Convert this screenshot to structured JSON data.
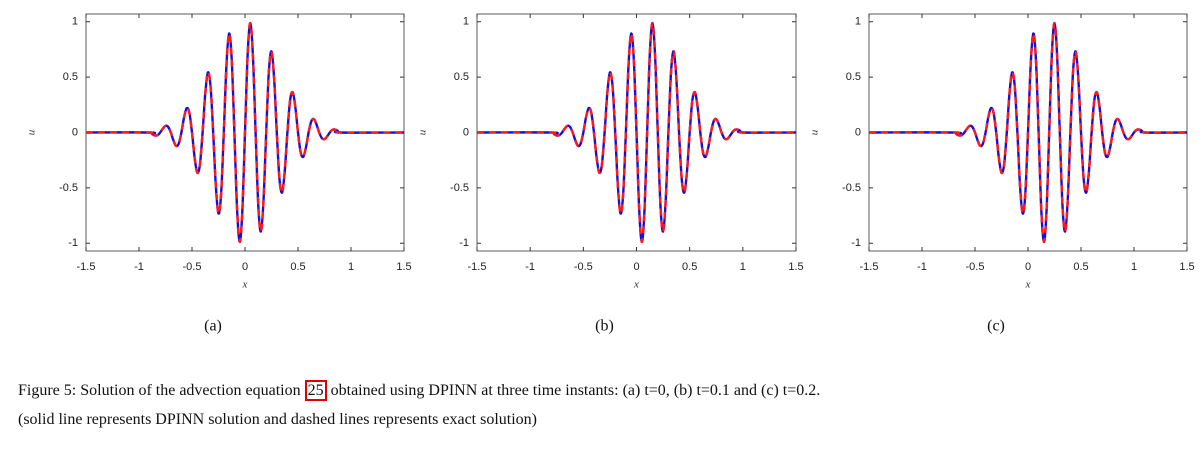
{
  "chart_data": [
    {
      "type": "line",
      "label": "(a)",
      "xlabel": "x",
      "ylabel": "u",
      "xlim": [
        -1.5,
        1.5
      ],
      "ylim": [
        -1.07,
        1.07
      ],
      "xticks": [
        -1.5,
        -1,
        -0.5,
        0,
        0.5,
        1,
        1.5
      ],
      "yticks": [
        -1,
        -0.5,
        0,
        0.5,
        1
      ],
      "grid": false,
      "x": [
        -1.5,
        -0.9,
        -0.875,
        -0.85,
        -0.825,
        -0.8,
        -0.775,
        -0.75,
        -0.725,
        -0.7,
        -0.675,
        -0.65,
        -0.625,
        -0.6,
        -0.575,
        -0.55,
        -0.525,
        -0.5,
        -0.475,
        -0.45,
        -0.425,
        -0.4,
        -0.375,
        -0.35,
        -0.325,
        -0.3,
        -0.275,
        -0.25,
        -0.225,
        -0.2,
        -0.175,
        -0.15,
        -0.125,
        -0.1,
        -0.075,
        -0.05,
        -0.025,
        0,
        0.025,
        0.05,
        0.075,
        0.1,
        0.125,
        0.15,
        0.175,
        0.2,
        0.225,
        0.25,
        0.275,
        0.3,
        0.325,
        0.35,
        0.375,
        0.4,
        0.425,
        0.45,
        0.475,
        0.5,
        0.525,
        0.55,
        0.575,
        0.6,
        0.625,
        0.65,
        0.675,
        0.7,
        0.725,
        0.75,
        0.775,
        0.8,
        0.825,
        0.85,
        0.875,
        0.9,
        1.5
      ],
      "series": [
        {
          "color": "#1010e0",
          "dashed": false,
          "values": [
            0,
            0,
            -0.015,
            -0.027,
            -0.024,
            0,
            0.035,
            0.06,
            0.051,
            0,
            -0.072,
            -0.121,
            -0.1,
            0,
            0.135,
            0.22,
            0.178,
            0,
            -0.229,
            -0.363,
            -0.287,
            0,
            0.35,
            0.542,
            0.417,
            0,
            -0.485,
            -0.732,
            -0.549,
            0,
            0.607,
            0.894,
            0.654,
            0,
            -0.687,
            -0.988,
            -0.705,
            0,
            0.705,
            0.988,
            0.687,
            0,
            -0.654,
            -0.894,
            -0.607,
            0,
            0.549,
            0.732,
            0.485,
            0,
            -0.417,
            -0.542,
            -0.35,
            0,
            0.287,
            0.363,
            0.229,
            0,
            -0.178,
            -0.22,
            -0.135,
            0,
            0.1,
            0.121,
            0.072,
            0,
            -0.051,
            -0.06,
            -0.035,
            0,
            0.024,
            0.027,
            0.015,
            0,
            0
          ]
        },
        {
          "color": "#ff1a1a",
          "dashed": true,
          "values": [
            0,
            0,
            -0.015,
            -0.027,
            -0.024,
            0,
            0.035,
            0.06,
            0.051,
            0,
            -0.072,
            -0.121,
            -0.1,
            0,
            0.135,
            0.22,
            0.178,
            0,
            -0.229,
            -0.363,
            -0.287,
            0,
            0.35,
            0.542,
            0.417,
            0,
            -0.485,
            -0.732,
            -0.549,
            0,
            0.607,
            0.894,
            0.654,
            0,
            -0.687,
            -0.988,
            -0.705,
            0,
            0.705,
            0.988,
            0.687,
            0,
            -0.654,
            -0.894,
            -0.607,
            0,
            0.549,
            0.732,
            0.485,
            0,
            -0.417,
            -0.542,
            -0.35,
            0,
            0.287,
            0.363,
            0.229,
            0,
            -0.178,
            -0.22,
            -0.135,
            0,
            0.1,
            0.121,
            0.072,
            0,
            -0.051,
            -0.06,
            -0.035,
            0,
            0.024,
            0.027,
            0.015,
            0,
            0
          ]
        }
      ]
    },
    {
      "type": "line",
      "label": "(b)",
      "xlabel": "x",
      "ylabel": "u",
      "xlim": [
        -1.5,
        1.5
      ],
      "ylim": [
        -1.07,
        1.07
      ],
      "xticks": [
        -1.5,
        -1,
        -0.5,
        0,
        0.5,
        1,
        1.5
      ],
      "yticks": [
        -1,
        -0.5,
        0,
        0.5,
        1
      ],
      "grid": false,
      "x": [
        -1.5,
        -0.8,
        -0.775,
        -0.75,
        -0.725,
        -0.7,
        -0.675,
        -0.65,
        -0.625,
        -0.6,
        -0.575,
        -0.55,
        -0.525,
        -0.5,
        -0.475,
        -0.45,
        -0.425,
        -0.4,
        -0.375,
        -0.35,
        -0.325,
        -0.3,
        -0.275,
        -0.25,
        -0.225,
        -0.2,
        -0.175,
        -0.15,
        -0.125,
        -0.1,
        -0.075,
        -0.05,
        -0.025,
        0,
        0.025,
        0.05,
        0.075,
        0.1,
        0.125,
        0.15,
        0.175,
        0.2,
        0.225,
        0.25,
        0.275,
        0.3,
        0.325,
        0.35,
        0.375,
        0.4,
        0.425,
        0.45,
        0.475,
        0.5,
        0.525,
        0.55,
        0.575,
        0.6,
        0.625,
        0.65,
        0.675,
        0.7,
        0.725,
        0.75,
        0.775,
        0.8,
        0.825,
        0.85,
        0.875,
        0.9,
        0.925,
        0.95,
        0.975,
        1.0,
        1.5
      ],
      "series": [
        {
          "color": "#1010e0",
          "dashed": false,
          "values": [
            0,
            0,
            -0.015,
            -0.027,
            -0.024,
            0,
            0.035,
            0.06,
            0.051,
            0,
            -0.072,
            -0.121,
            -0.1,
            0,
            0.135,
            0.22,
            0.178,
            0,
            -0.229,
            -0.363,
            -0.287,
            0,
            0.35,
            0.542,
            0.417,
            0,
            -0.485,
            -0.732,
            -0.549,
            0,
            0.607,
            0.894,
            0.654,
            0,
            -0.687,
            -0.988,
            -0.705,
            0,
            0.705,
            0.988,
            0.687,
            0,
            -0.654,
            -0.894,
            -0.607,
            0,
            0.549,
            0.732,
            0.485,
            0,
            -0.417,
            -0.542,
            -0.35,
            0,
            0.287,
            0.363,
            0.229,
            0,
            -0.178,
            -0.22,
            -0.135,
            0,
            0.1,
            0.121,
            0.072,
            0,
            -0.051,
            -0.06,
            -0.035,
            0,
            0.024,
            0.027,
            0.015,
            0,
            0
          ]
        },
        {
          "color": "#ff1a1a",
          "dashed": true,
          "values": [
            0,
            0,
            -0.015,
            -0.027,
            -0.024,
            0,
            0.035,
            0.06,
            0.051,
            0,
            -0.072,
            -0.121,
            -0.1,
            0,
            0.135,
            0.22,
            0.178,
            0,
            -0.229,
            -0.363,
            -0.287,
            0,
            0.35,
            0.542,
            0.417,
            0,
            -0.485,
            -0.732,
            -0.549,
            0,
            0.607,
            0.894,
            0.654,
            0,
            -0.687,
            -0.988,
            -0.705,
            0,
            0.705,
            0.988,
            0.687,
            0,
            -0.654,
            -0.894,
            -0.607,
            0,
            0.549,
            0.732,
            0.485,
            0,
            -0.417,
            -0.542,
            -0.35,
            0,
            0.287,
            0.363,
            0.229,
            0,
            -0.178,
            -0.22,
            -0.135,
            0,
            0.1,
            0.121,
            0.072,
            0,
            -0.051,
            -0.06,
            -0.035,
            0,
            0.024,
            0.027,
            0.015,
            0,
            0
          ]
        }
      ]
    },
    {
      "type": "line",
      "label": "(c)",
      "xlabel": "x",
      "ylabel": "u",
      "xlim": [
        -1.5,
        1.5
      ],
      "ylim": [
        -1.07,
        1.07
      ],
      "xticks": [
        -1.5,
        -1,
        -0.5,
        0,
        0.5,
        1,
        1.5
      ],
      "yticks": [
        -1,
        -0.5,
        0,
        0.5,
        1
      ],
      "grid": false,
      "x": [
        -1.5,
        -0.7,
        -0.675,
        -0.65,
        -0.625,
        -0.6,
        -0.575,
        -0.55,
        -0.525,
        -0.5,
        -0.475,
        -0.45,
        -0.425,
        -0.4,
        -0.375,
        -0.35,
        -0.325,
        -0.3,
        -0.275,
        -0.25,
        -0.225,
        -0.2,
        -0.175,
        -0.15,
        -0.125,
        -0.1,
        -0.075,
        -0.05,
        -0.025,
        0,
        0.025,
        0.05,
        0.075,
        0.1,
        0.125,
        0.15,
        0.175,
        0.2,
        0.225,
        0.25,
        0.275,
        0.3,
        0.325,
        0.35,
        0.375,
        0.4,
        0.425,
        0.45,
        0.475,
        0.5,
        0.525,
        0.55,
        0.575,
        0.6,
        0.625,
        0.65,
        0.675,
        0.7,
        0.725,
        0.75,
        0.775,
        0.8,
        0.825,
        0.85,
        0.875,
        0.9,
        0.925,
        0.95,
        0.975,
        1.0,
        1.025,
        1.05,
        1.075,
        1.1,
        1.5
      ],
      "series": [
        {
          "color": "#1010e0",
          "dashed": false,
          "values": [
            0,
            0,
            -0.015,
            -0.027,
            -0.024,
            0,
            0.035,
            0.06,
            0.051,
            0,
            -0.072,
            -0.121,
            -0.1,
            0,
            0.135,
            0.22,
            0.178,
            0,
            -0.229,
            -0.363,
            -0.287,
            0,
            0.35,
            0.542,
            0.417,
            0,
            -0.485,
            -0.732,
            -0.549,
            0,
            0.607,
            0.894,
            0.654,
            0,
            -0.687,
            -0.988,
            -0.705,
            0,
            0.705,
            0.988,
            0.687,
            0,
            -0.654,
            -0.894,
            -0.607,
            0,
            0.549,
            0.732,
            0.485,
            0,
            -0.417,
            -0.542,
            -0.35,
            0,
            0.287,
            0.363,
            0.229,
            0,
            -0.178,
            -0.22,
            -0.135,
            0,
            0.1,
            0.121,
            0.072,
            0,
            -0.051,
            -0.06,
            -0.035,
            0,
            0.024,
            0.027,
            0.015,
            0,
            0
          ]
        },
        {
          "color": "#ff1a1a",
          "dashed": true,
          "values": [
            0,
            0,
            -0.015,
            -0.027,
            -0.024,
            0,
            0.035,
            0.06,
            0.051,
            0,
            -0.072,
            -0.121,
            -0.1,
            0,
            0.135,
            0.22,
            0.178,
            0,
            -0.229,
            -0.363,
            -0.287,
            0,
            0.35,
            0.542,
            0.417,
            0,
            -0.485,
            -0.732,
            -0.549,
            0,
            0.607,
            0.894,
            0.654,
            0,
            -0.687,
            -0.988,
            -0.705,
            0,
            0.705,
            0.988,
            0.687,
            0,
            -0.654,
            -0.894,
            -0.607,
            0,
            0.549,
            0.732,
            0.485,
            0,
            -0.417,
            -0.542,
            -0.35,
            0,
            0.287,
            0.363,
            0.229,
            0,
            -0.178,
            -0.22,
            -0.135,
            0,
            0.1,
            0.121,
            0.072,
            0,
            -0.051,
            -0.06,
            -0.035,
            0,
            0.024,
            0.027,
            0.015,
            0,
            0
          ]
        }
      ]
    }
  ],
  "caption": {
    "before": "Figure 5: Solution of the advection equation ",
    "ref": "25",
    "after": " obtained using DPINN at three time instants: (a) t=0, (b) t=0.1 and (c) t=0.2.",
    "line2": "(solid line represents DPINN solution and dashed lines represents exact solution)"
  }
}
